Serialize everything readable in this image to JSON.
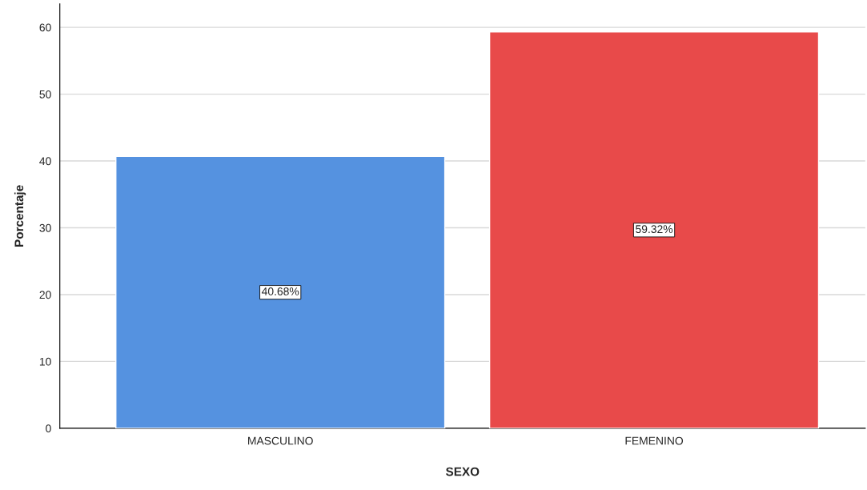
{
  "chart_data": {
    "type": "bar",
    "xlabel": "SEXO",
    "ylabel": "Porcentaje",
    "categories": [
      "MASCULINO",
      "FEMENINO"
    ],
    "values": [
      40.68,
      59.32
    ],
    "colors": [
      "#5592e0",
      "#e84a4a"
    ],
    "value_labels": [
      "40.68%",
      "59.32%"
    ],
    "ylim": [
      0,
      63.5
    ],
    "yticks": [
      0,
      10,
      20,
      30,
      40,
      50,
      60
    ],
    "grid": "y",
    "legend": false
  }
}
